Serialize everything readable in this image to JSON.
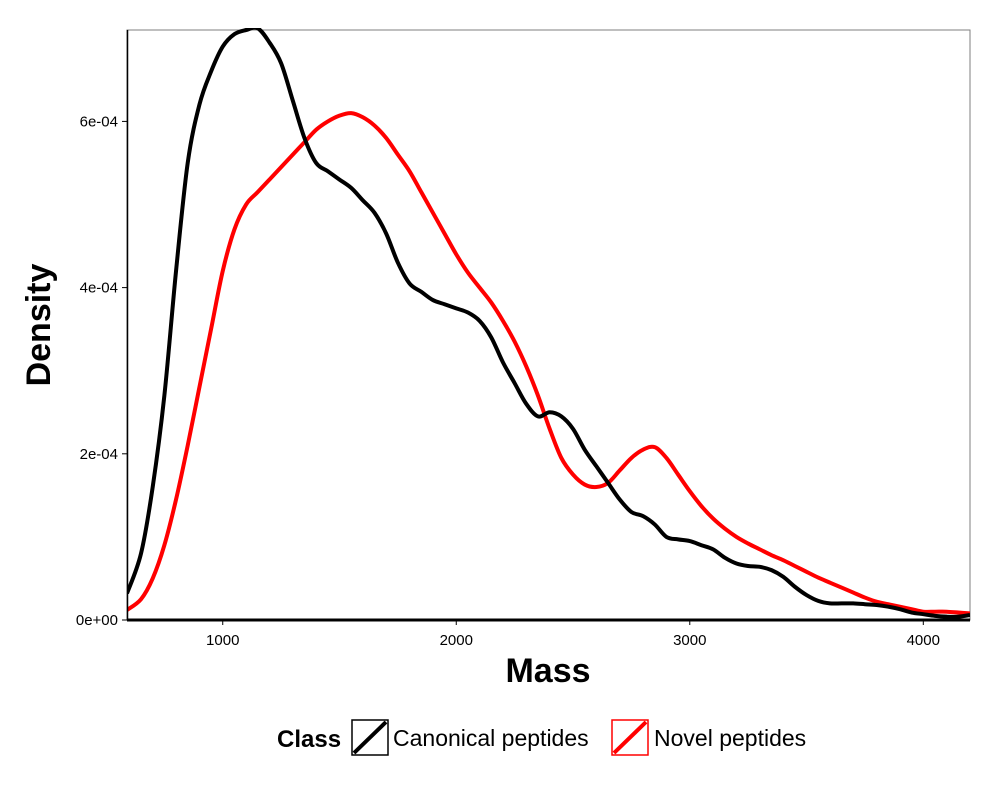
{
  "chart_data": {
    "type": "line",
    "xlabel": "Mass",
    "ylabel": "Density",
    "xlim": [
      590,
      4200
    ],
    "ylim": [
      0,
      0.00071
    ],
    "x_ticks": [
      1000,
      2000,
      3000,
      4000
    ],
    "x_tick_labels": [
      "1000",
      "2000",
      "3000",
      "4000"
    ],
    "y_ticks": [
      0,
      0.0002,
      0.0004,
      0.0006
    ],
    "y_tick_labels": [
      "0e+00",
      "2e-04",
      "4e-04",
      "6e-04"
    ],
    "grid": false,
    "legend": {
      "title": "Class",
      "position": "bottom",
      "entries": [
        "Canonical peptides",
        "Novel peptides"
      ]
    },
    "series": [
      {
        "name": "Canonical peptides",
        "color": "#000000",
        "x": [
          590,
          650,
          700,
          750,
          800,
          850,
          900,
          950,
          1000,
          1050,
          1100,
          1150,
          1200,
          1250,
          1300,
          1350,
          1400,
          1450,
          1500,
          1550,
          1600,
          1650,
          1700,
          1750,
          1800,
          1850,
          1900,
          1950,
          2000,
          2050,
          2100,
          2150,
          2200,
          2250,
          2300,
          2350,
          2400,
          2450,
          2500,
          2550,
          2600,
          2650,
          2700,
          2750,
          2800,
          2850,
          2900,
          2950,
          3000,
          3050,
          3100,
          3150,
          3200,
          3250,
          3300,
          3350,
          3400,
          3450,
          3500,
          3550,
          3600,
          3650,
          3700,
          3750,
          3800,
          3850,
          3900,
          3950,
          4000,
          4050,
          4100,
          4150,
          4200
        ],
        "values": [
          3.2e-05,
          8e-05,
          0.00016,
          0.00027,
          0.00042,
          0.00055,
          0.00062,
          0.00066,
          0.00069,
          0.000705,
          0.00071,
          0.000712,
          0.000695,
          0.00067,
          0.000625,
          0.00058,
          0.00055,
          0.00054,
          0.00053,
          0.00052,
          0.000505,
          0.00049,
          0.000465,
          0.00043,
          0.000405,
          0.000395,
          0.000385,
          0.00038,
          0.000375,
          0.00037,
          0.00036,
          0.00034,
          0.00031,
          0.000285,
          0.00026,
          0.000245,
          0.00025,
          0.000245,
          0.00023,
          0.000205,
          0.000185,
          0.000165,
          0.000145,
          0.00013,
          0.000125,
          0.000115,
          0.0001,
          9.7e-05,
          9.5e-05,
          9e-05,
          8.5e-05,
          7.5e-05,
          6.8e-05,
          6.5e-05,
          6.4e-05,
          6e-05,
          5.2e-05,
          4e-05,
          3e-05,
          2.3e-05,
          2e-05,
          2e-05,
          2e-05,
          1.9e-05,
          1.8e-05,
          1.6e-05,
          1.3e-05,
          9e-06,
          7e-06,
          5e-06,
          4e-06,
          4e-06,
          6e-06
        ]
      },
      {
        "name": "Novel peptides",
        "color": "#ff0000",
        "x": [
          590,
          650,
          700,
          750,
          800,
          850,
          900,
          950,
          1000,
          1050,
          1100,
          1150,
          1200,
          1250,
          1300,
          1350,
          1400,
          1450,
          1500,
          1550,
          1600,
          1650,
          1700,
          1750,
          1800,
          1850,
          1900,
          1950,
          2000,
          2050,
          2100,
          2150,
          2200,
          2250,
          2300,
          2350,
          2400,
          2450,
          2500,
          2550,
          2600,
          2650,
          2700,
          2750,
          2800,
          2850,
          2900,
          2950,
          3000,
          3050,
          3100,
          3150,
          3200,
          3250,
          3300,
          3350,
          3400,
          3450,
          3500,
          3550,
          3600,
          3650,
          3700,
          3750,
          3800,
          3850,
          3900,
          3950,
          4000,
          4050,
          4100,
          4150,
          4200
        ],
        "values": [
          1.2e-05,
          2.5e-05,
          5e-05,
          9e-05,
          0.000145,
          0.00021,
          0.00028,
          0.00035,
          0.00042,
          0.00047,
          0.0005,
          0.000515,
          0.00053,
          0.000545,
          0.00056,
          0.000575,
          0.00059,
          0.0006,
          0.000607,
          0.00061,
          0.000605,
          0.000595,
          0.00058,
          0.00056,
          0.00054,
          0.000515,
          0.00049,
          0.000465,
          0.00044,
          0.000418,
          0.0004,
          0.000382,
          0.00036,
          0.000335,
          0.000305,
          0.00027,
          0.00023,
          0.000195,
          0.000175,
          0.000163,
          0.00016,
          0.000165,
          0.00018,
          0.000195,
          0.000205,
          0.000208,
          0.000195,
          0.000175,
          0.000155,
          0.000137,
          0.000122,
          0.00011,
          0.0001,
          9.2e-05,
          8.5e-05,
          7.8e-05,
          7.2e-05,
          6.5e-05,
          5.8e-05,
          5.1e-05,
          4.5e-05,
          3.9e-05,
          3.3e-05,
          2.7e-05,
          2.2e-05,
          1.9e-05,
          1.6e-05,
          1.3e-05,
          1e-05,
          1e-05,
          1e-05,
          9e-06,
          8e-06
        ]
      }
    ]
  }
}
